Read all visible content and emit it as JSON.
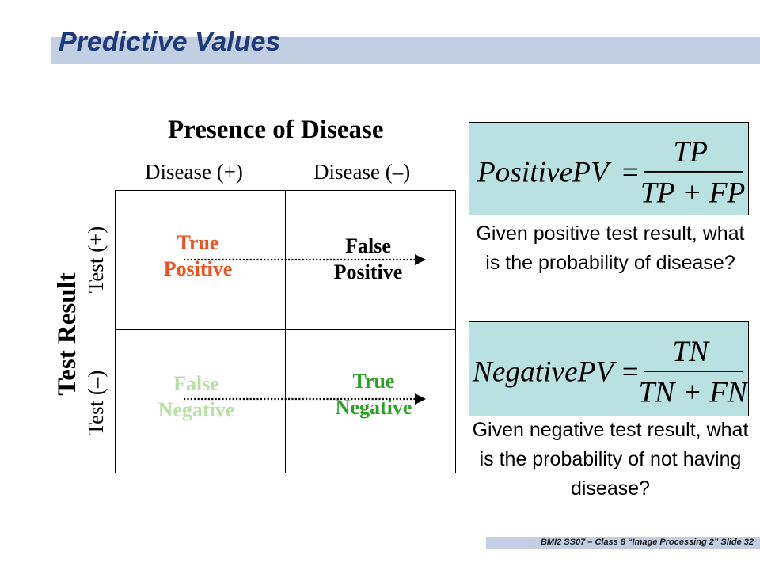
{
  "slide": {
    "title": "Predictive Values",
    "footer": "BMI2 SS07 – Class 8 “Image Processing 2” Slide 32"
  },
  "matrix": {
    "column_heading": "Presence of Disease",
    "col_labels": [
      "Disease (+)",
      "Disease (–)"
    ],
    "row_heading": "Test Result",
    "row_labels": [
      "Test (+)",
      "Test (–)"
    ],
    "cells": {
      "tp": {
        "line1": "True",
        "line2": "Positive",
        "color": "#f24f1d"
      },
      "fp": {
        "line1": "False",
        "line2": "Positive",
        "color": "#000000"
      },
      "fn": {
        "line1": "False",
        "line2": "Negative",
        "color": "#b8e0a4"
      },
      "tn": {
        "line1": "True",
        "line2": "Negative",
        "color": "#2ca128"
      }
    }
  },
  "formulas": {
    "ppv": {
      "lhs": "PositivePV",
      "num": "TP",
      "den": "TP + FP"
    },
    "npv": {
      "lhs": "NegativePV",
      "num": "TN",
      "den": "TN + FN"
    },
    "box_color": "#b9e1e1"
  },
  "questions": {
    "positive": "Given positive test result, what is the probability of disease?",
    "negative": "Given negative test result, what is the probability of not having disease?"
  }
}
